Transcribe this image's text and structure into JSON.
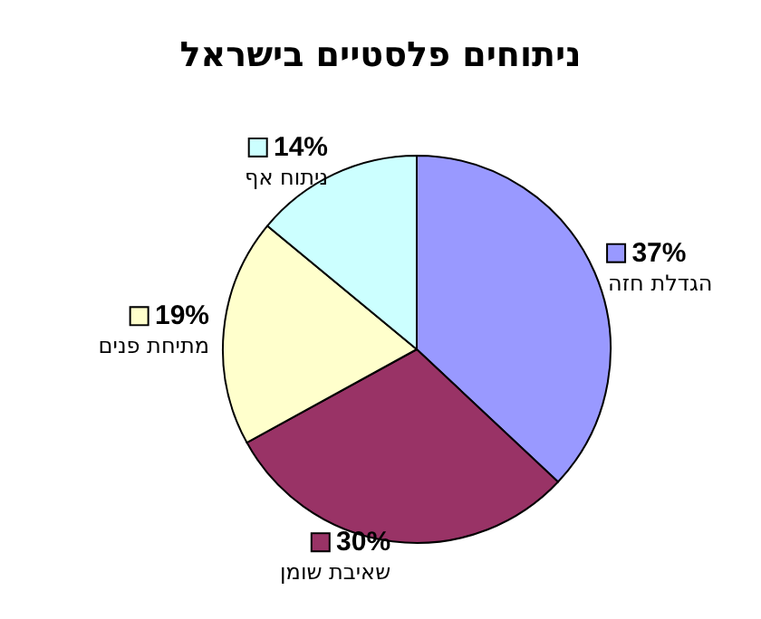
{
  "chart_data": {
    "type": "pie",
    "title": "ניתוחים פלסטיים בישראל",
    "categories": [
      "הגדלת חזה",
      "שאיבת שומן",
      "מתיחת פנים",
      "ניתוח אף"
    ],
    "values": [
      37,
      30,
      19,
      14
    ],
    "value_labels": [
      "37%",
      "30%",
      "19%",
      "14%"
    ],
    "colors": [
      "#9999ff",
      "#993366",
      "#ffffcc",
      "#ccffff"
    ],
    "legend": "right"
  }
}
